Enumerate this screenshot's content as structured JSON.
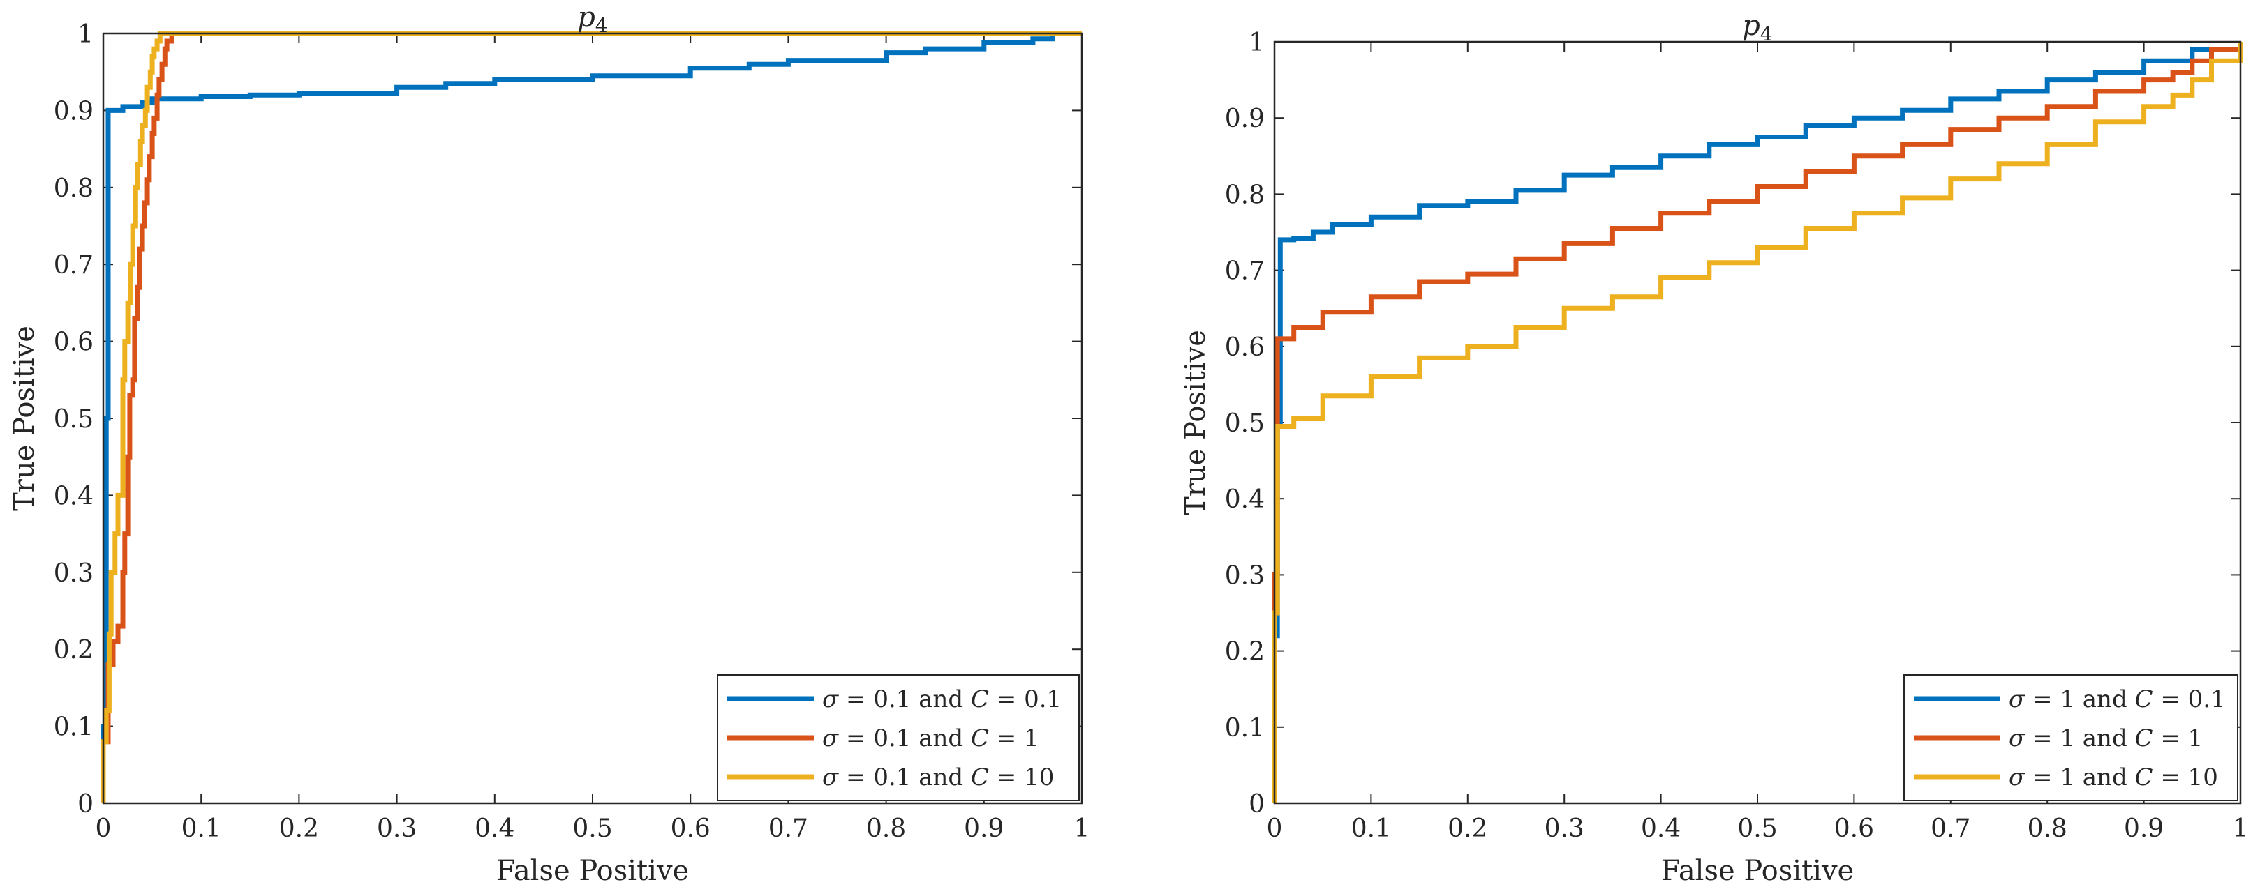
{
  "chart_data": [
    {
      "type": "line",
      "title": "p",
      "title_subscript": "4",
      "xlabel": "False Positive",
      "ylabel": "True Positive",
      "xlim": [
        0,
        1
      ],
      "ylim": [
        0,
        1
      ],
      "xticks": [
        "0",
        "0.1",
        "0.2",
        "0.3",
        "0.4",
        "0.5",
        "0.6",
        "0.7",
        "0.8",
        "0.9",
        "1"
      ],
      "yticks": [
        "0",
        "0.1",
        "0.2",
        "0.3",
        "0.4",
        "0.5",
        "0.6",
        "0.7",
        "0.8",
        "0.9",
        "1"
      ],
      "legend_position": "bottom-right",
      "series": [
        {
          "name": "σ = 0.1 and C = 0.1",
          "legend": {
            "sigma": "0.1",
            "c": "0.1"
          },
          "color": "#0072BD",
          "x": [
            0,
            0,
            0.003,
            0.003,
            0.005,
            0.005,
            0.02,
            0.02,
            0.04,
            0.05,
            0.1,
            0.15,
            0.2,
            0.3,
            0.35,
            0.4,
            0.5,
            0.6,
            0.66,
            0.7,
            0.8,
            0.84,
            0.9,
            0.95,
            0.97,
            0.98,
            1
          ],
          "y": [
            0,
            0.1,
            0.15,
            0.5,
            0.52,
            0.9,
            0.9,
            0.905,
            0.91,
            0.915,
            0.918,
            0.92,
            0.922,
            0.93,
            0.935,
            0.94,
            0.945,
            0.955,
            0.96,
            0.965,
            0.975,
            0.98,
            0.988,
            0.993,
            1,
            1,
            1
          ]
        },
        {
          "name": "σ = 0.1 and C = 1",
          "legend": {
            "sigma": "0.1",
            "c": "1"
          },
          "color": "#D95319",
          "x": [
            0,
            0,
            0.005,
            0.005,
            0.01,
            0.015,
            0.02,
            0.022,
            0.025,
            0.027,
            0.03,
            0.032,
            0.035,
            0.037,
            0.04,
            0.042,
            0.045,
            0.047,
            0.05,
            0.052,
            0.055,
            0.057,
            0.06,
            0.063,
            0.065,
            0.07,
            0.1,
            1
          ],
          "y": [
            0,
            0.08,
            0.1,
            0.18,
            0.21,
            0.23,
            0.3,
            0.35,
            0.45,
            0.53,
            0.55,
            0.63,
            0.67,
            0.72,
            0.75,
            0.78,
            0.81,
            0.84,
            0.87,
            0.89,
            0.92,
            0.94,
            0.96,
            0.98,
            0.99,
            1,
            1,
            1
          ]
        },
        {
          "name": "σ = 0.1 and C = 10",
          "legend": {
            "sigma": "0.1",
            "c": "10"
          },
          "color": "#EDB120",
          "x": [
            0,
            0,
            0.003,
            0.006,
            0.008,
            0.012,
            0.015,
            0.02,
            0.022,
            0.025,
            0.028,
            0.03,
            0.033,
            0.035,
            0.038,
            0.04,
            0.043,
            0.045,
            0.048,
            0.05,
            0.052,
            0.055,
            0.058,
            0.06,
            0.1,
            1
          ],
          "y": [
            0,
            0.08,
            0.12,
            0.22,
            0.3,
            0.35,
            0.4,
            0.55,
            0.6,
            0.65,
            0.7,
            0.75,
            0.8,
            0.83,
            0.86,
            0.88,
            0.9,
            0.93,
            0.95,
            0.97,
            0.98,
            0.99,
            1,
            1,
            1,
            1
          ]
        }
      ]
    },
    {
      "type": "line",
      "title": "p",
      "title_subscript": "4",
      "xlabel": "False Positive",
      "ylabel": "True Positive",
      "xlim": [
        0,
        1
      ],
      "ylim": [
        0,
        1
      ],
      "xticks": [
        "0",
        "0.1",
        "0.2",
        "0.3",
        "0.4",
        "0.5",
        "0.6",
        "0.7",
        "0.8",
        "0.9",
        "1"
      ],
      "yticks": [
        "0",
        "0.1",
        "0.2",
        "0.3",
        "0.4",
        "0.5",
        "0.6",
        "0.7",
        "0.8",
        "0.9",
        "1"
      ],
      "legend_position": "bottom-right",
      "series": [
        {
          "name": "σ = 1 and C = 0.1",
          "legend": {
            "sigma": "1",
            "c": "0.1"
          },
          "color": "#0072BD",
          "x": [
            0,
            0,
            0.003,
            0.003,
            0.006,
            0.006,
            0.02,
            0.04,
            0.06,
            0.1,
            0.15,
            0.2,
            0.25,
            0.3,
            0.35,
            0.4,
            0.45,
            0.5,
            0.55,
            0.6,
            0.65,
            0.7,
            0.75,
            0.8,
            0.85,
            0.9,
            0.95,
            1
          ],
          "y": [
            0,
            0.22,
            0.4,
            0.5,
            0.62,
            0.74,
            0.742,
            0.75,
            0.76,
            0.77,
            0.785,
            0.79,
            0.805,
            0.825,
            0.835,
            0.85,
            0.865,
            0.875,
            0.89,
            0.9,
            0.91,
            0.925,
            0.935,
            0.95,
            0.96,
            0.975,
            0.99,
            1
          ]
        },
        {
          "name": "σ = 1 and C = 1",
          "legend": {
            "sigma": "1",
            "c": "1"
          },
          "color": "#D95319",
          "x": [
            0,
            0,
            0.003,
            0.003,
            0.02,
            0.05,
            0.1,
            0.15,
            0.2,
            0.25,
            0.3,
            0.35,
            0.4,
            0.45,
            0.5,
            0.55,
            0.6,
            0.65,
            0.7,
            0.75,
            0.8,
            0.85,
            0.9,
            0.93,
            0.95,
            0.97,
            1
          ],
          "y": [
            0,
            0.3,
            0.45,
            0.61,
            0.625,
            0.645,
            0.665,
            0.685,
            0.695,
            0.715,
            0.735,
            0.755,
            0.775,
            0.79,
            0.81,
            0.83,
            0.85,
            0.865,
            0.885,
            0.9,
            0.915,
            0.935,
            0.95,
            0.96,
            0.975,
            0.99,
            1
          ]
        },
        {
          "name": "σ = 1 and C = 10",
          "legend": {
            "sigma": "1",
            "c": "10"
          },
          "color": "#EDB120",
          "x": [
            0,
            0,
            0.003,
            0.003,
            0.02,
            0.05,
            0.1,
            0.15,
            0.2,
            0.25,
            0.3,
            0.35,
            0.4,
            0.45,
            0.5,
            0.55,
            0.6,
            0.65,
            0.7,
            0.75,
            0.8,
            0.85,
            0.9,
            0.93,
            0.95,
            0.97,
            1
          ],
          "y": [
            0,
            0.25,
            0.4,
            0.495,
            0.505,
            0.535,
            0.56,
            0.585,
            0.6,
            0.625,
            0.65,
            0.665,
            0.69,
            0.71,
            0.73,
            0.755,
            0.775,
            0.795,
            0.82,
            0.84,
            0.865,
            0.895,
            0.915,
            0.93,
            0.95,
            0.975,
            1
          ]
        }
      ]
    }
  ]
}
